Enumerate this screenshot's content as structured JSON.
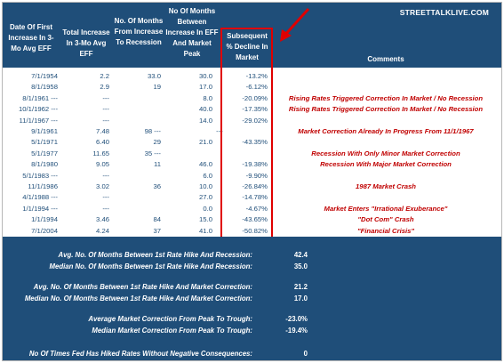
{
  "brand": "STREETTALKLIVE.COM",
  "headers": {
    "date": "Date Of First Increase In 3-Mo Avg EFF",
    "increase": "Total Increase In 3-Mo Avg EFF",
    "months_recession": "No. Of Months From Increase To Recession",
    "months_peak": "No Of Months Between Increase In EFF And Market Peak",
    "decline": "Subsequent % Decline In Market",
    "comments": "Comments"
  },
  "rows": [
    {
      "date": "7/1/1954",
      "inc": "2.2",
      "mrec": "33.0",
      "mpeak": "30.0",
      "dash": "",
      "dec": "-13.2%",
      "com": ""
    },
    {
      "date": "8/1/1958",
      "inc": "2.9",
      "mrec": "19",
      "mpeak": "17.0",
      "dash": "",
      "dec": "-6.12%",
      "com": ""
    },
    {
      "date": "8/1/1961 ---",
      "inc": "---",
      "mrec": "",
      "mpeak": "8.0",
      "dash": "",
      "dec": "-20.09%",
      "com": "Rising Rates Triggered Correction In Market / No Recession"
    },
    {
      "date": "10/1/1962 ---",
      "inc": "---",
      "mrec": "",
      "mpeak": "40.0",
      "dash": "",
      "dec": "-17.35%",
      "com": "Rising Rates Triggered Correction In Market / No Recession"
    },
    {
      "date": "11/1/1967 ---",
      "inc": "---",
      "mrec": "",
      "mpeak": "14.0",
      "dash": "",
      "dec": "-29.02%",
      "com": ""
    },
    {
      "date": "9/1/1961",
      "inc": "7.48",
      "mrec": "98 ---",
      "mpeak": "",
      "dash": "---",
      "dec": "",
      "com": "Market Correction Already In Progress From 11/1/1967"
    },
    {
      "date": "5/1/1971",
      "inc": "6.40",
      "mrec": "29",
      "mpeak": "21.0",
      "dash": "",
      "dec": "-43.35%",
      "com": ""
    },
    {
      "date": "5/1/1977",
      "inc": "11.65",
      "mrec": "35 ---",
      "mpeak": "",
      "dash": "",
      "dec": "",
      "com": "Recession With Only Minor Market Correction"
    },
    {
      "date": "8/1/1980",
      "inc": "9.05",
      "mrec": "11",
      "mpeak": "46.0",
      "dash": "",
      "dec": "-19.38%",
      "com": "Recession With Major Market Correction"
    },
    {
      "date": "5/1/1983 ---",
      "inc": "---",
      "mrec": "",
      "mpeak": "6.0",
      "dash": "",
      "dec": "-9.90%",
      "com": ""
    },
    {
      "date": "11/1/1986",
      "inc": "3.02",
      "mrec": "36",
      "mpeak": "10.0",
      "dash": "",
      "dec": "-26.84%",
      "com": "1987 Market Crash"
    },
    {
      "date": "4/1/1988 ---",
      "inc": "---",
      "mrec": "",
      "mpeak": "27.0",
      "dash": "",
      "dec": "-14.78%",
      "com": ""
    },
    {
      "date": "1/1/1994 ---",
      "inc": "---",
      "mrec": "",
      "mpeak": "0.0",
      "dash": "",
      "dec": "-4.67%",
      "com": "Market Enters \"Irrational Exuberance\""
    },
    {
      "date": "1/1/1994",
      "inc": "3.46",
      "mrec": "84",
      "mpeak": "15.0",
      "dash": "",
      "dec": "-43.65%",
      "com": "\"Dot Com\" Crash"
    },
    {
      "date": "7/1/2004",
      "inc": "4.24",
      "mrec": "37",
      "mpeak": "41.0",
      "dash": "",
      "dec": "-50.82%",
      "com": "\"Financial Crisis\""
    }
  ],
  "summary": [
    {
      "label": "Avg. No. Of Months Between 1st Rate Hike And Recession:",
      "value": "42.4"
    },
    {
      "label": "Median No. Of Months Between 1st Rate Hike And Recession:",
      "value": "35.0"
    },
    {
      "label": "Avg. No. Of Months Between 1st Rate Hike And Market Correction:",
      "value": "21.2"
    },
    {
      "label": "Median No. Of Months Between 1st Rate Hike And Market Correction:",
      "value": "17.0"
    },
    {
      "label": "Average Market Correction From Peak To Trough:",
      "value": "-23.0%"
    },
    {
      "label": "Median Market Correction From Peak To Trough:",
      "value": "-19.4%"
    },
    {
      "label": "No Of Times Fed Has Hiked Rates Without Negative Consequences:",
      "value": "0"
    }
  ],
  "colors": {
    "header_bg": "#1f4e79",
    "highlight": "#e00000",
    "comment": "#c00000"
  }
}
